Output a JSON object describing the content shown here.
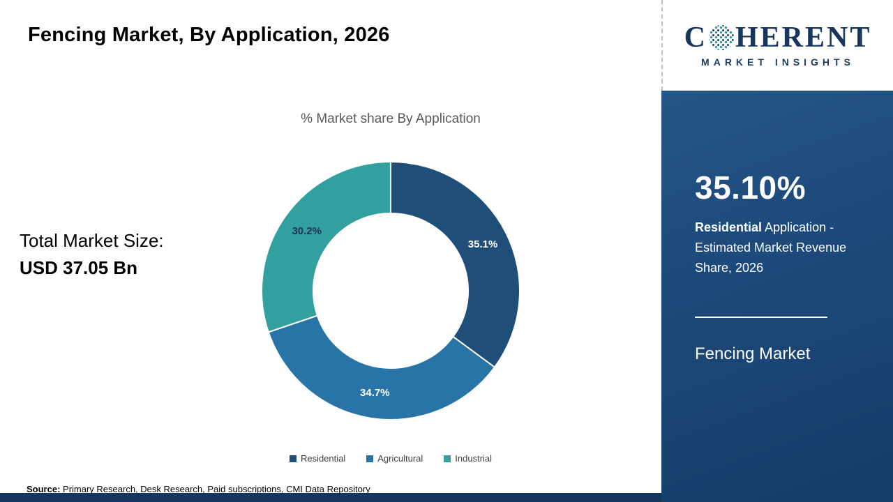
{
  "page": {
    "title": "Fencing Market, By Application, 2026",
    "source_label": "Source:",
    "source_text": " Primary Research, Desk Research, Paid subscriptions, CMI Data Repository"
  },
  "left_panel": {
    "total_label": "Total Market Size:",
    "total_value": "USD 37.05 Bn"
  },
  "chart_data": {
    "type": "pie",
    "donut": true,
    "inner_radius_ratio": 0.6,
    "title": "% Market share By Application",
    "categories": [
      "Residential",
      "Agricultural",
      "Industrial"
    ],
    "values": [
      35.1,
      34.7,
      30.2
    ],
    "labels": [
      "35.1%",
      "34.7%",
      "30.2%"
    ],
    "colors": [
      "#1f4e79",
      "#2874a6",
      "#33a0a0"
    ],
    "label_colors": [
      "#ffffff",
      "#ffffff",
      "#1f3050"
    ],
    "legend_position": "bottom",
    "start_angle_deg": 0,
    "direction": "clockwise"
  },
  "sidebar": {
    "logo": {
      "c": "C",
      "icon": "globe-dots-icon",
      "rest": "HERENT",
      "sub": "MARKET INSIGHTS"
    },
    "stat_value": "35.10%",
    "stat_bold": "Residential",
    "stat_rest": " Application - Estimated Market Revenue Share, 2026",
    "footer": "Fencing Market"
  },
  "colors": {
    "sidebar_navy": "#1d4b7c",
    "bottom_bar": "#17365d",
    "logo_navy": "#17365d",
    "logo_teal": "#2e9ca0",
    "chart_title_gray": "#595959"
  }
}
